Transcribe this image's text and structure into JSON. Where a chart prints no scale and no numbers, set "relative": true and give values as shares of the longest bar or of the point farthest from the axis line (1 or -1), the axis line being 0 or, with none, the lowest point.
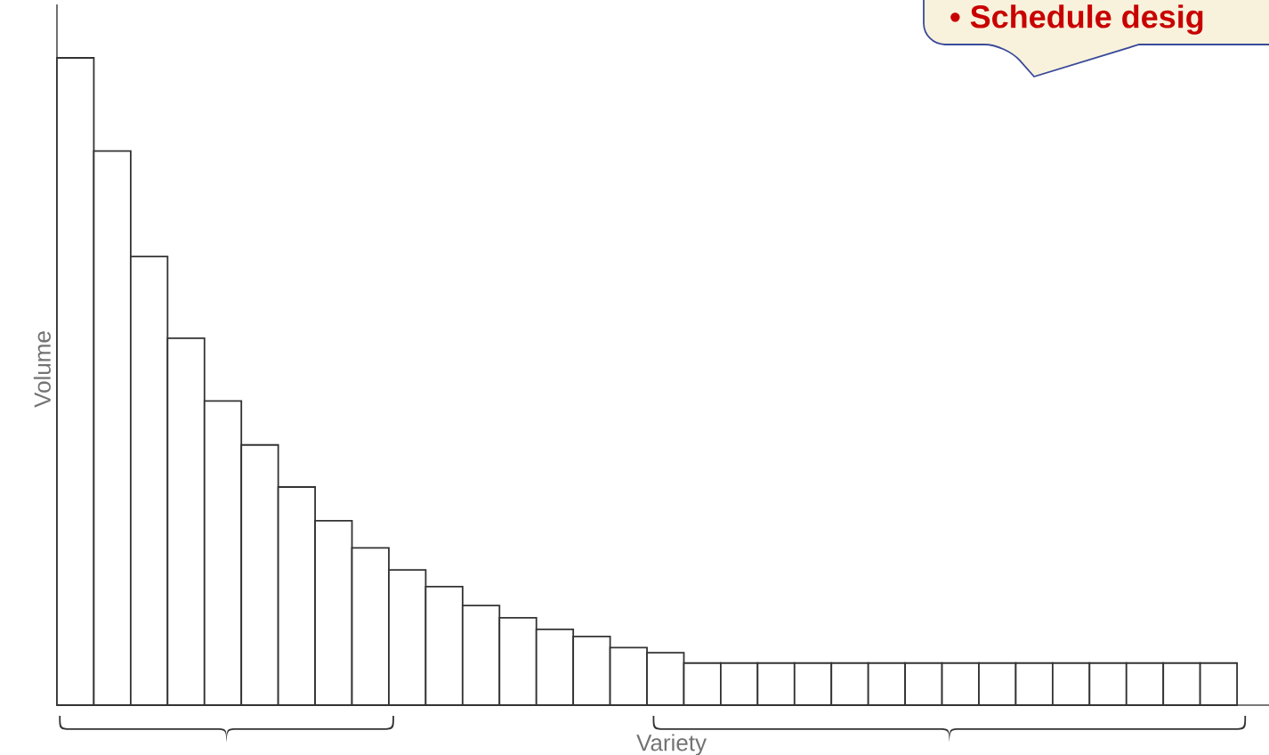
{
  "chart_data": {
    "type": "bar",
    "relative": true,
    "xlabel": "Variety",
    "ylabel": "Volume",
    "annotations": [
      "• Schedule desig"
    ],
    "categories": [
      null,
      null,
      null,
      null,
      null,
      null,
      null,
      null,
      null,
      null,
      null,
      null,
      null,
      null,
      null,
      null,
      null,
      null,
      null,
      null,
      null,
      null,
      null,
      null,
      null,
      null,
      null,
      null,
      null,
      null,
      null,
      null
    ],
    "values": [
      1,
      0.856,
      0.693,
      0.567,
      0.47,
      0.402,
      0.337,
      0.285,
      0.243,
      0.209,
      0.183,
      0.154,
      0.135,
      0.117,
      0.106,
      0.089,
      0.081,
      0.065,
      0.065,
      0.065,
      0.065,
      0.065,
      0.065,
      0.065,
      0.065,
      0.065,
      0.065,
      0.065,
      0.065,
      0.065,
      0.065,
      0.065
    ],
    "color": "#ffffff"
  }
}
